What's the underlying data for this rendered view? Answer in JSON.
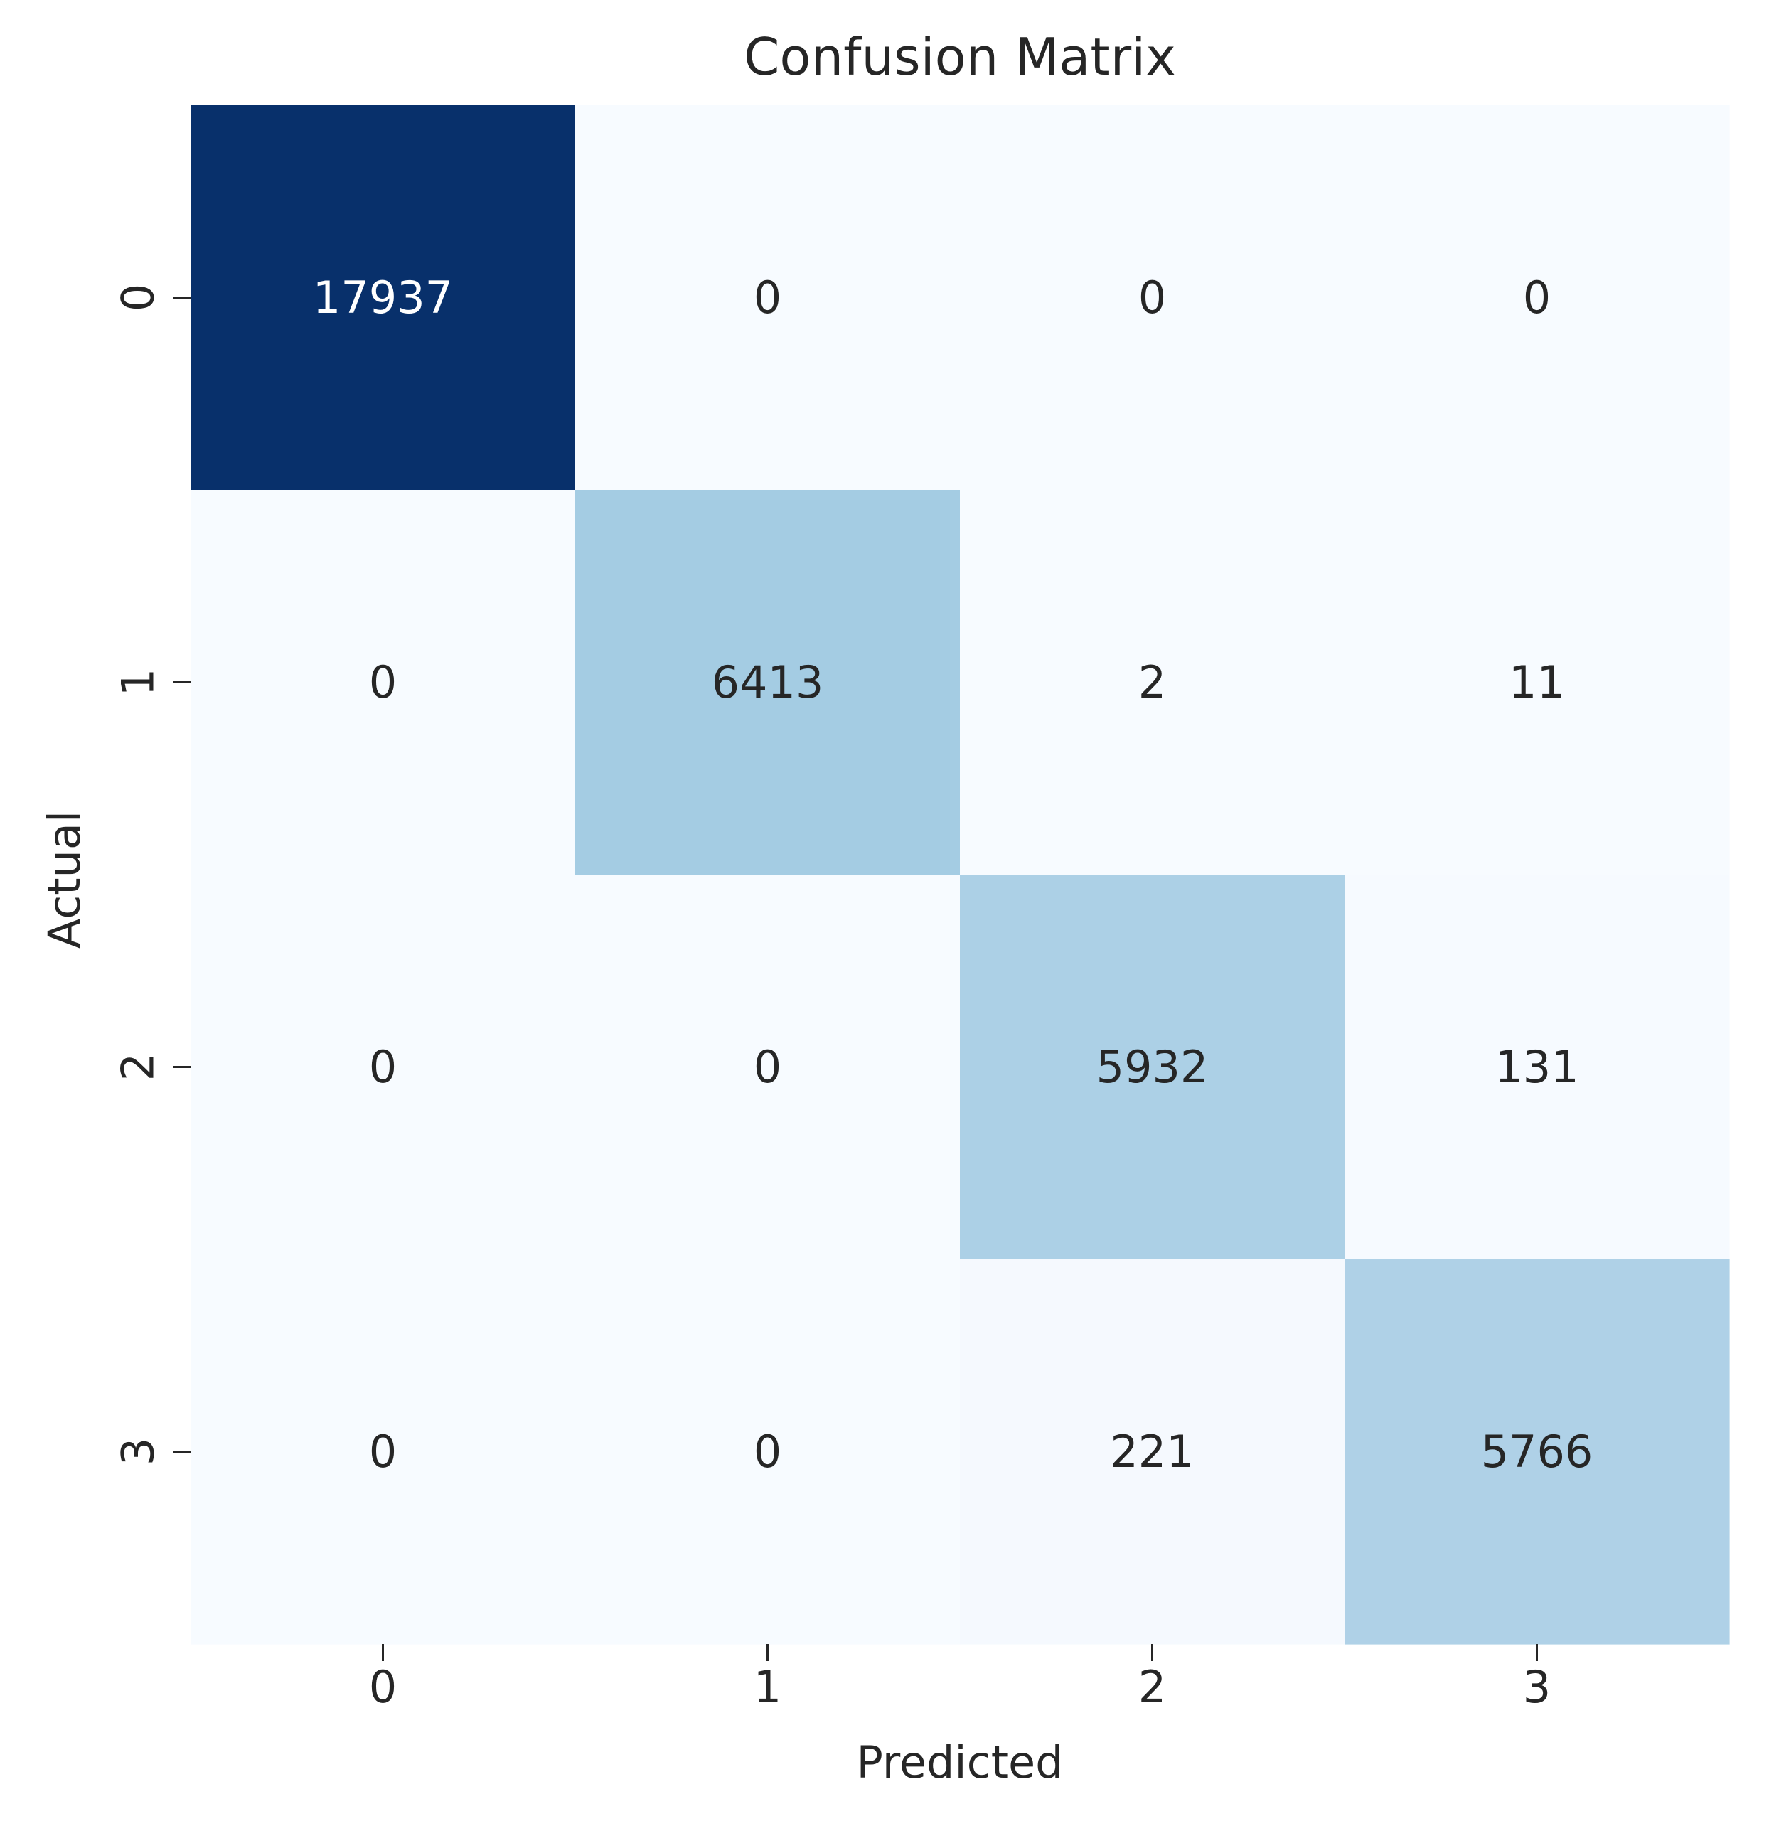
{
  "chart_data": {
    "type": "heatmap",
    "title": "Confusion Matrix",
    "xlabel": "Predicted",
    "ylabel": "Actual",
    "x_categories": [
      "0",
      "1",
      "2",
      "3"
    ],
    "y_categories": [
      "0",
      "1",
      "2",
      "3"
    ],
    "values": [
      [
        17937,
        0,
        0,
        0
      ],
      [
        0,
        6413,
        2,
        11
      ],
      [
        0,
        0,
        5932,
        131
      ],
      [
        0,
        0,
        221,
        5766
      ]
    ],
    "colormap": "Blues",
    "colorbar": false,
    "colors": {
      "low": "#f7fbff",
      "mid": "#a8cde3",
      "high": "#08306b",
      "text_dark": "#262626",
      "text_light": "#ffffff"
    }
  }
}
